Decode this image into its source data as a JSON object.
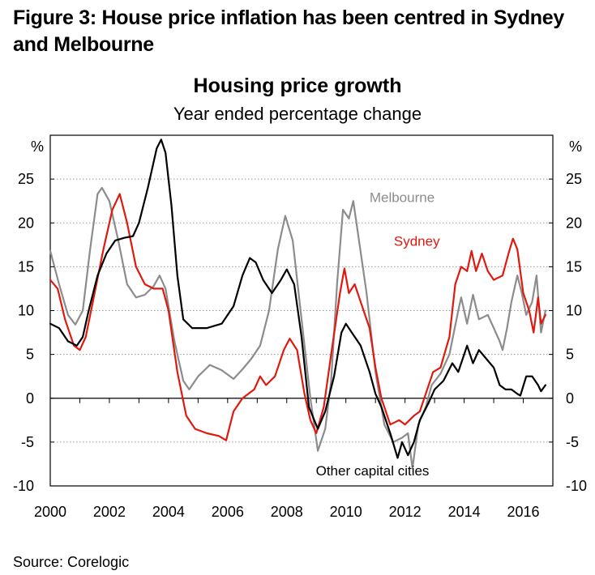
{
  "figure_title": "Figure 3: House price inflation has been centred in Sydney and Melbourne",
  "source": "Source: Corelogic",
  "chart_data": {
    "type": "line",
    "title": "Housing price growth",
    "subtitle": "Year ended percentage change",
    "ylabel_left": "%",
    "ylabel_right": "%",
    "xlim": [
      2000,
      2017
    ],
    "ylim": [
      -10,
      30
    ],
    "x_ticks": [
      2000,
      2002,
      2004,
      2006,
      2008,
      2010,
      2012,
      2014,
      2016
    ],
    "y_ticks": [
      -10,
      -5,
      0,
      5,
      10,
      15,
      20,
      25
    ],
    "y_tick_labels": [
      "-10",
      "-5",
      "0",
      "5",
      "10",
      "15",
      "20",
      "25"
    ],
    "grid": "horizontal dotted",
    "series": [
      {
        "name": "Melbourne",
        "color": "#8c8c8c",
        "points": [
          [
            2000.0,
            16.8
          ],
          [
            2000.3,
            13.0
          ],
          [
            2000.6,
            9.5
          ],
          [
            2000.85,
            8.4
          ],
          [
            2001.1,
            10.0
          ],
          [
            2001.35,
            17.0
          ],
          [
            2001.6,
            23.3
          ],
          [
            2001.75,
            24.0
          ],
          [
            2002.0,
            22.5
          ],
          [
            2002.3,
            18.0
          ],
          [
            2002.6,
            13.0
          ],
          [
            2002.9,
            11.5
          ],
          [
            2003.2,
            11.8
          ],
          [
            2003.5,
            12.8
          ],
          [
            2003.7,
            14.0
          ],
          [
            2003.9,
            12.5
          ],
          [
            2004.2,
            6.5
          ],
          [
            2004.5,
            2.0
          ],
          [
            2004.7,
            1.0
          ],
          [
            2005.0,
            2.5
          ],
          [
            2005.4,
            3.8
          ],
          [
            2005.8,
            3.2
          ],
          [
            2006.2,
            2.2
          ],
          [
            2006.5,
            3.3
          ],
          [
            2006.8,
            4.5
          ],
          [
            2007.1,
            6.0
          ],
          [
            2007.4,
            10.0
          ],
          [
            2007.7,
            17.0
          ],
          [
            2007.95,
            20.8
          ],
          [
            2008.2,
            18.0
          ],
          [
            2008.5,
            9.0
          ],
          [
            2008.8,
            0.0
          ],
          [
            2009.05,
            -6.0
          ],
          [
            2009.3,
            -3.5
          ],
          [
            2009.5,
            2.0
          ],
          [
            2009.7,
            13.0
          ],
          [
            2009.9,
            21.5
          ],
          [
            2010.1,
            20.5
          ],
          [
            2010.25,
            22.5
          ],
          [
            2010.4,
            19.0
          ],
          [
            2010.7,
            12.0
          ],
          [
            2011.0,
            3.0
          ],
          [
            2011.3,
            -3.0
          ],
          [
            2011.6,
            -5.0
          ],
          [
            2011.9,
            -4.5
          ],
          [
            2012.1,
            -4.0
          ],
          [
            2012.25,
            -8.0
          ],
          [
            2012.45,
            -3.0
          ],
          [
            2012.7,
            -1.0
          ],
          [
            2012.9,
            1.5
          ],
          [
            2013.2,
            2.8
          ],
          [
            2013.5,
            5.0
          ],
          [
            2013.8,
            10.0
          ],
          [
            2013.9,
            11.5
          ],
          [
            2014.1,
            8.5
          ],
          [
            2014.3,
            11.8
          ],
          [
            2014.5,
            9.0
          ],
          [
            2014.8,
            9.5
          ],
          [
            2015.0,
            8.0
          ],
          [
            2015.2,
            6.5
          ],
          [
            2015.3,
            5.5
          ],
          [
            2015.45,
            8.0
          ],
          [
            2015.6,
            11.0
          ],
          [
            2015.8,
            14.0
          ],
          [
            2015.95,
            12.0
          ],
          [
            2016.1,
            9.5
          ],
          [
            2016.3,
            11.0
          ],
          [
            2016.45,
            14.0
          ],
          [
            2016.6,
            7.5
          ],
          [
            2016.75,
            10.0
          ]
        ]
      },
      {
        "name": "Sydney",
        "color": "#e0190f",
        "points": [
          [
            2000.0,
            13.5
          ],
          [
            2000.25,
            12.5
          ],
          [
            2000.5,
            9.0
          ],
          [
            2000.8,
            6.0
          ],
          [
            2001.0,
            5.5
          ],
          [
            2001.2,
            7.0
          ],
          [
            2001.5,
            12.0
          ],
          [
            2001.8,
            17.0
          ],
          [
            2002.1,
            21.5
          ],
          [
            2002.35,
            23.3
          ],
          [
            2002.6,
            20.0
          ],
          [
            2002.9,
            15.0
          ],
          [
            2003.2,
            13.0
          ],
          [
            2003.5,
            12.5
          ],
          [
            2003.8,
            12.5
          ],
          [
            2004.0,
            10.0
          ],
          [
            2004.3,
            3.0
          ],
          [
            2004.6,
            -2.0
          ],
          [
            2004.9,
            -3.5
          ],
          [
            2005.3,
            -4.0
          ],
          [
            2005.7,
            -4.3
          ],
          [
            2005.95,
            -4.8
          ],
          [
            2006.2,
            -1.5
          ],
          [
            2006.5,
            0.0
          ],
          [
            2006.7,
            0.5
          ],
          [
            2006.9,
            1.0
          ],
          [
            2007.1,
            2.5
          ],
          [
            2007.3,
            1.5
          ],
          [
            2007.6,
            2.5
          ],
          [
            2007.9,
            5.5
          ],
          [
            2008.1,
            6.8
          ],
          [
            2008.35,
            5.5
          ],
          [
            2008.6,
            0.5
          ],
          [
            2008.8,
            -2.5
          ],
          [
            2009.0,
            -4.0
          ],
          [
            2009.25,
            -1.0
          ],
          [
            2009.5,
            5.0
          ],
          [
            2009.8,
            12.0
          ],
          [
            2009.95,
            14.8
          ],
          [
            2010.1,
            12.0
          ],
          [
            2010.3,
            13.0
          ],
          [
            2010.5,
            11.0
          ],
          [
            2010.8,
            8.0
          ],
          [
            2011.0,
            3.5
          ],
          [
            2011.2,
            0.0
          ],
          [
            2011.5,
            -3.0
          ],
          [
            2011.8,
            -2.5
          ],
          [
            2012.0,
            -3.0
          ],
          [
            2012.3,
            -2.0
          ],
          [
            2012.5,
            -1.5
          ],
          [
            2012.7,
            0.5
          ],
          [
            2012.95,
            3.0
          ],
          [
            2013.2,
            3.5
          ],
          [
            2013.5,
            7.0
          ],
          [
            2013.7,
            13.0
          ],
          [
            2013.9,
            15.0
          ],
          [
            2014.1,
            14.5
          ],
          [
            2014.25,
            16.8
          ],
          [
            2014.4,
            14.5
          ],
          [
            2014.6,
            16.5
          ],
          [
            2014.8,
            14.5
          ],
          [
            2015.0,
            13.5
          ],
          [
            2015.3,
            14.0
          ],
          [
            2015.5,
            16.5
          ],
          [
            2015.65,
            18.2
          ],
          [
            2015.8,
            17.0
          ],
          [
            2016.0,
            12.0
          ],
          [
            2016.2,
            10.0
          ],
          [
            2016.35,
            7.5
          ],
          [
            2016.5,
            11.5
          ],
          [
            2016.6,
            8.5
          ],
          [
            2016.75,
            9.5
          ]
        ]
      },
      {
        "name": "Other capital cities",
        "color": "#000000",
        "points": [
          [
            2000.0,
            8.5
          ],
          [
            2000.3,
            8.0
          ],
          [
            2000.6,
            6.5
          ],
          [
            2000.9,
            6.0
          ],
          [
            2001.1,
            7.0
          ],
          [
            2001.3,
            10.0
          ],
          [
            2001.6,
            14.0
          ],
          [
            2001.9,
            16.5
          ],
          [
            2002.2,
            18.0
          ],
          [
            2002.5,
            18.3
          ],
          [
            2002.8,
            18.5
          ],
          [
            2003.0,
            20.0
          ],
          [
            2003.3,
            24.0
          ],
          [
            2003.6,
            28.5
          ],
          [
            2003.75,
            29.5
          ],
          [
            2003.9,
            28.0
          ],
          [
            2004.1,
            22.0
          ],
          [
            2004.3,
            14.0
          ],
          [
            2004.5,
            9.0
          ],
          [
            2004.8,
            8.0
          ],
          [
            2005.3,
            8.0
          ],
          [
            2005.8,
            8.5
          ],
          [
            2006.0,
            9.5
          ],
          [
            2006.2,
            10.5
          ],
          [
            2006.5,
            14.0
          ],
          [
            2006.75,
            16.0
          ],
          [
            2006.95,
            15.5
          ],
          [
            2007.2,
            13.5
          ],
          [
            2007.5,
            12.0
          ],
          [
            2007.8,
            13.5
          ],
          [
            2008.0,
            14.7
          ],
          [
            2008.25,
            13.0
          ],
          [
            2008.5,
            7.0
          ],
          [
            2008.75,
            -1.0
          ],
          [
            2009.05,
            -3.5
          ],
          [
            2009.3,
            -1.5
          ],
          [
            2009.6,
            2.5
          ],
          [
            2009.85,
            7.5
          ],
          [
            2010.0,
            8.5
          ],
          [
            2010.2,
            7.5
          ],
          [
            2010.5,
            6.0
          ],
          [
            2010.8,
            3.0
          ],
          [
            2011.0,
            0.5
          ],
          [
            2011.2,
            -1.0
          ],
          [
            2011.5,
            -4.0
          ],
          [
            2011.75,
            -6.8
          ],
          [
            2011.9,
            -5.0
          ],
          [
            2012.1,
            -6.5
          ],
          [
            2012.3,
            -5.0
          ],
          [
            2012.5,
            -2.5
          ],
          [
            2012.8,
            -0.5
          ],
          [
            2013.0,
            1.0
          ],
          [
            2013.3,
            2.0
          ],
          [
            2013.6,
            4.0
          ],
          [
            2013.8,
            3.0
          ],
          [
            2014.0,
            5.0
          ],
          [
            2014.1,
            6.0
          ],
          [
            2014.3,
            4.0
          ],
          [
            2014.5,
            5.5
          ],
          [
            2014.75,
            4.5
          ],
          [
            2015.0,
            3.5
          ],
          [
            2015.2,
            1.5
          ],
          [
            2015.4,
            1.0
          ],
          [
            2015.6,
            1.0
          ],
          [
            2015.8,
            0.5
          ],
          [
            2015.9,
            0.3
          ],
          [
            2016.1,
            2.5
          ],
          [
            2016.3,
            2.5
          ],
          [
            2016.5,
            1.5
          ],
          [
            2016.6,
            0.8
          ],
          [
            2016.75,
            1.5
          ]
        ]
      }
    ],
    "annotations": [
      {
        "series": "Melbourne",
        "text": "Melbourne",
        "x": 2011.9,
        "y": 22.4
      },
      {
        "series": "Sydney",
        "text": "Sydney",
        "x": 2012.4,
        "y": 17.4
      },
      {
        "series": "Other capital cities",
        "text": "Other capital cities",
        "x": 2010.9,
        "y": -8.8
      }
    ]
  }
}
